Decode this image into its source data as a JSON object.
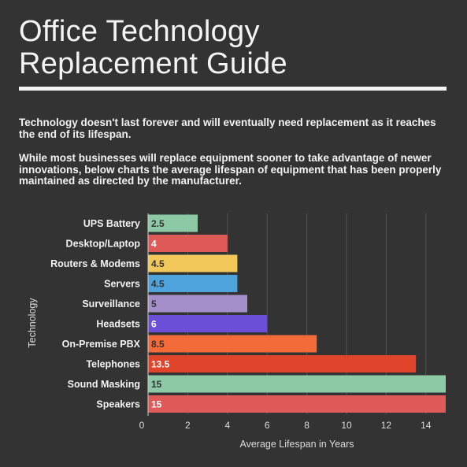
{
  "header": {
    "title_line1": "Office Technology",
    "title_line2": "Replacement Guide",
    "intro_p1": "Technology doesn't last forever and will eventually need replacement as it reaches the end of its lifespan.",
    "intro_p2": "While most businesses will replace equipment sooner to take advantage of newer innovations, below charts the average lifespan of equipment that has been properly maintained as directed by the manufacturer."
  },
  "chart_data": {
    "type": "bar",
    "orientation": "horizontal",
    "categories": [
      "UPS Battery",
      "Desktop/Laptop",
      "Routers & Modems",
      "Servers",
      "Surveillance",
      "Headsets",
      "On-Premise PBX",
      "Telephones",
      "Sound Masking",
      "Speakers"
    ],
    "values": [
      2.5,
      4,
      4.5,
      4.5,
      5,
      6,
      8.5,
      13.5,
      15,
      15
    ],
    "value_labels": [
      "2.5",
      "4",
      "4.5",
      "4.5",
      "5",
      "6",
      "8.5",
      "13.5",
      "15",
      "15"
    ],
    "colors": [
      "#8dc9a5",
      "#e05a5a",
      "#f2c85b",
      "#4fa3dc",
      "#a58fca",
      "#6b4fd6",
      "#f26b38",
      "#e0442a",
      "#8dc9a5",
      "#e05a5a"
    ],
    "label_colors": [
      "#333333",
      "#ffffff",
      "#333333",
      "#333333",
      "#333333",
      "#ffffff",
      "#333333",
      "#ffffff",
      "#333333",
      "#ffffff"
    ],
    "xlabel": "Average Lifespan in Years",
    "ylabel": "Technology",
    "xlim": [
      0,
      15
    ],
    "xticks": [
      0,
      2,
      4,
      6,
      8,
      10,
      12,
      14
    ],
    "grid": true
  }
}
